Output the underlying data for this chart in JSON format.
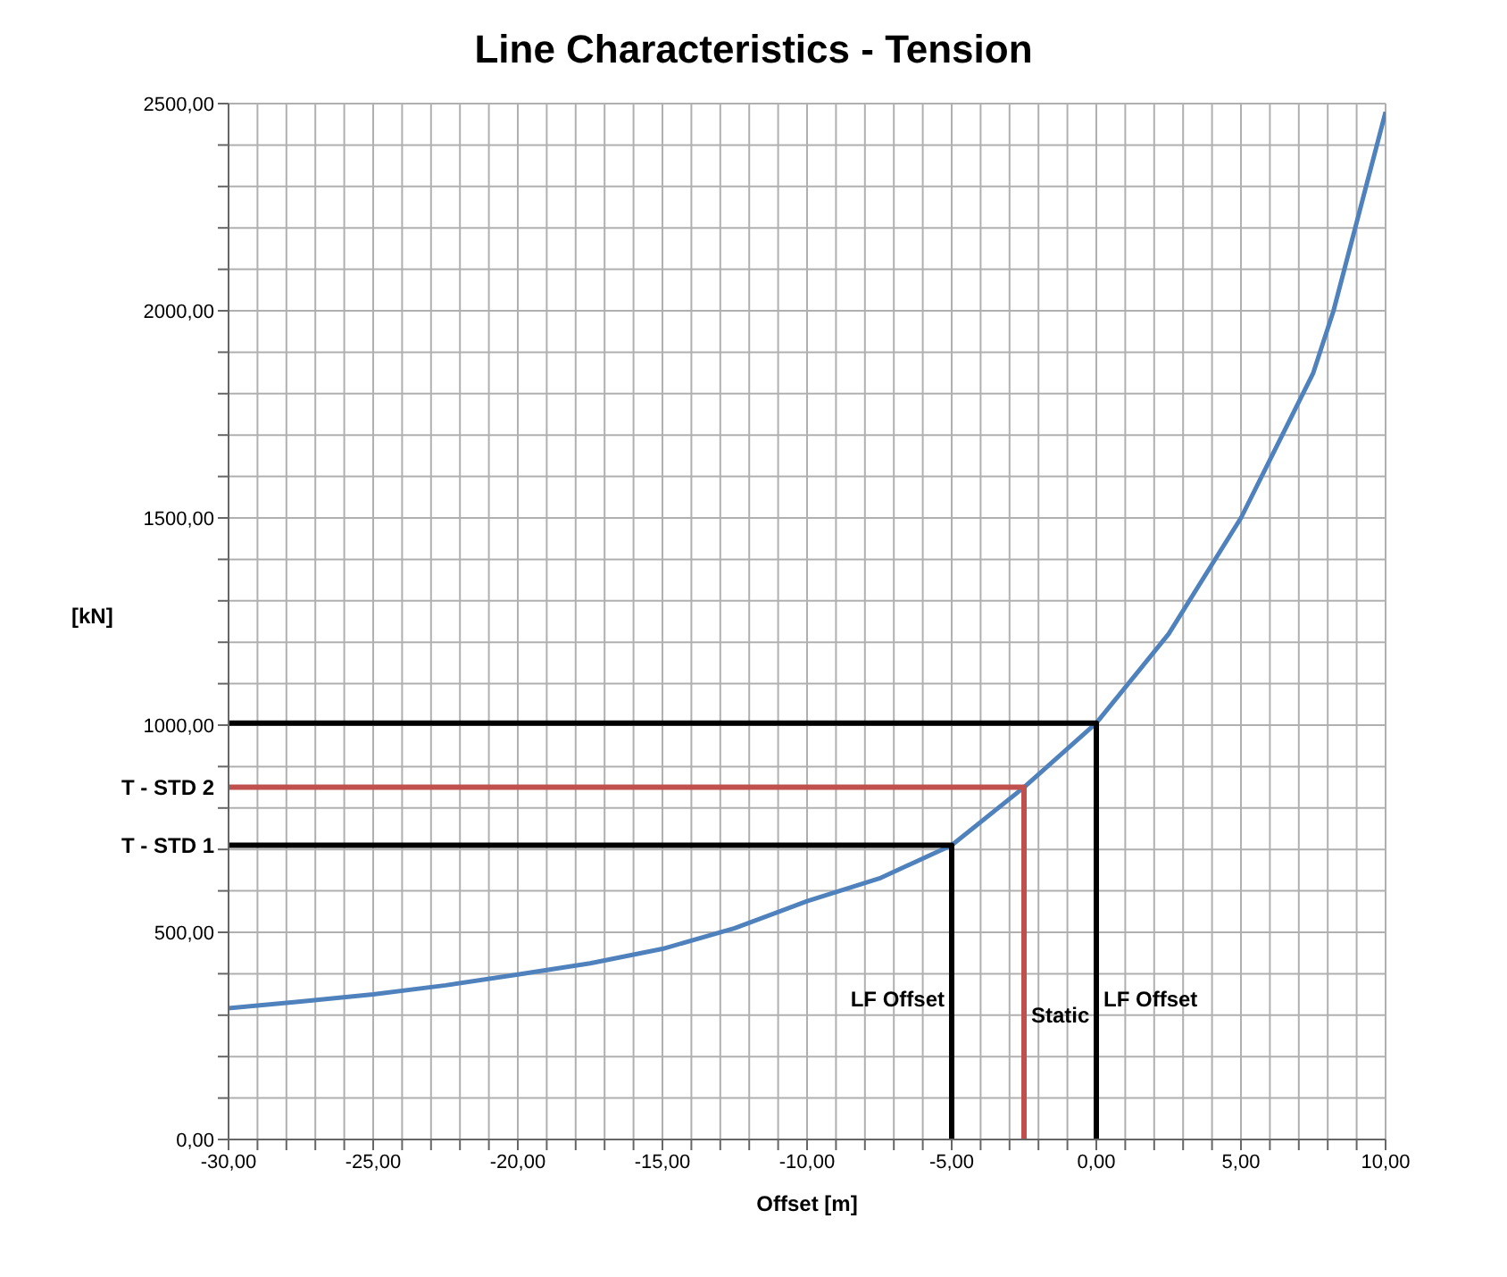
{
  "chart_data": {
    "type": "line",
    "title": "Line Characteristics - Tension",
    "xlabel": "Offset  [m]",
    "ylabel": "[kN]",
    "xlim": [
      -30,
      10
    ],
    "ylim": [
      0,
      2500
    ],
    "xticks": [
      {
        "value": -30,
        "label": "-30,00"
      },
      {
        "value": -29,
        "label": null
      },
      {
        "value": -28,
        "label": null
      },
      {
        "value": -27,
        "label": null
      },
      {
        "value": -26,
        "label": null
      },
      {
        "value": -25,
        "label": "-25,00"
      },
      {
        "value": -24,
        "label": null
      },
      {
        "value": -23,
        "label": null
      },
      {
        "value": -22,
        "label": null
      },
      {
        "value": -21,
        "label": null
      },
      {
        "value": -20,
        "label": "-20,00"
      },
      {
        "value": -19,
        "label": null
      },
      {
        "value": -18,
        "label": null
      },
      {
        "value": -17,
        "label": null
      },
      {
        "value": -16,
        "label": null
      },
      {
        "value": -15,
        "label": "-15,00"
      },
      {
        "value": -14,
        "label": null
      },
      {
        "value": -13,
        "label": null
      },
      {
        "value": -12,
        "label": null
      },
      {
        "value": -11,
        "label": null
      },
      {
        "value": -10,
        "label": "-10,00"
      },
      {
        "value": -9,
        "label": null
      },
      {
        "value": -8,
        "label": null
      },
      {
        "value": -7,
        "label": null
      },
      {
        "value": -6,
        "label": null
      },
      {
        "value": -5,
        "label": "-5,00"
      },
      {
        "value": -4,
        "label": null
      },
      {
        "value": -3,
        "label": null
      },
      {
        "value": -2,
        "label": null
      },
      {
        "value": -1,
        "label": null
      },
      {
        "value": 0,
        "label": "0,00"
      },
      {
        "value": 1,
        "label": null
      },
      {
        "value": 2,
        "label": null
      },
      {
        "value": 3,
        "label": null
      },
      {
        "value": 4,
        "label": null
      },
      {
        "value": 5,
        "label": "5,00"
      },
      {
        "value": 6,
        "label": null
      },
      {
        "value": 7,
        "label": null
      },
      {
        "value": 8,
        "label": null
      },
      {
        "value": 9,
        "label": null
      },
      {
        "value": 10,
        "label": "10,00"
      }
    ],
    "yticks": [
      {
        "value": 0,
        "label": "0,00"
      },
      {
        "value": 100,
        "label": null
      },
      {
        "value": 200,
        "label": null
      },
      {
        "value": 300,
        "label": null
      },
      {
        "value": 400,
        "label": null
      },
      {
        "value": 500,
        "label": "500,00"
      },
      {
        "value": 600,
        "label": null
      },
      {
        "value": 700,
        "label": null
      },
      {
        "value": 800,
        "label": null
      },
      {
        "value": 900,
        "label": null
      },
      {
        "value": 1000,
        "label": "1000,00"
      },
      {
        "value": 1100,
        "label": null
      },
      {
        "value": 1200,
        "label": null
      },
      {
        "value": 1300,
        "label": null
      },
      {
        "value": 1400,
        "label": null
      },
      {
        "value": 1500,
        "label": "1500,00"
      },
      {
        "value": 1600,
        "label": null
      },
      {
        "value": 1700,
        "label": null
      },
      {
        "value": 1800,
        "label": null
      },
      {
        "value": 1900,
        "label": null
      },
      {
        "value": 2000,
        "label": "2000,00"
      },
      {
        "value": 2100,
        "label": null
      },
      {
        "value": 2200,
        "label": null
      },
      {
        "value": 2300,
        "label": null
      },
      {
        "value": 2400,
        "label": null
      },
      {
        "value": 2500,
        "label": "2500,00"
      }
    ],
    "grid": true,
    "marker": "none",
    "series": [
      {
        "color": "#4f81bd",
        "x": [
          -30,
          -27.5,
          -25,
          -22.5,
          -20,
          -17.5,
          -15,
          -12.5,
          -10,
          -7.5,
          -5,
          -2.5,
          0,
          2.5,
          5,
          7.5,
          8.2,
          10
        ],
        "values": [
          317,
          333,
          350,
          372,
          398,
          425,
          460,
          510,
          575,
          630,
          710,
          850,
          1005,
          1220,
          1500,
          1850,
          2000,
          2480
        ]
      },
      {
        "color": "#000000",
        "x": [
          -30,
          0,
          0
        ],
        "values": [
          1005,
          1005,
          0
        ]
      },
      {
        "color": "#c0504d",
        "x": [
          -30,
          -2.5,
          -2.5
        ],
        "values": [
          850,
          850,
          0
        ]
      },
      {
        "color": "#000000",
        "x": [
          -30,
          -5,
          -5
        ],
        "values": [
          710,
          710,
          0
        ]
      }
    ],
    "annotations": [
      {
        "text": "T - STD 2",
        "x": -30,
        "y": 850
      },
      {
        "text": "T - STD 1",
        "x": -30,
        "y": 710
      },
      {
        "text": "LF Offset",
        "x": -5,
        "y": 340
      },
      {
        "text": "Static",
        "x": -2.5,
        "y": 300
      },
      {
        "text": "LF Offset",
        "x": 0,
        "y": 340
      }
    ]
  }
}
